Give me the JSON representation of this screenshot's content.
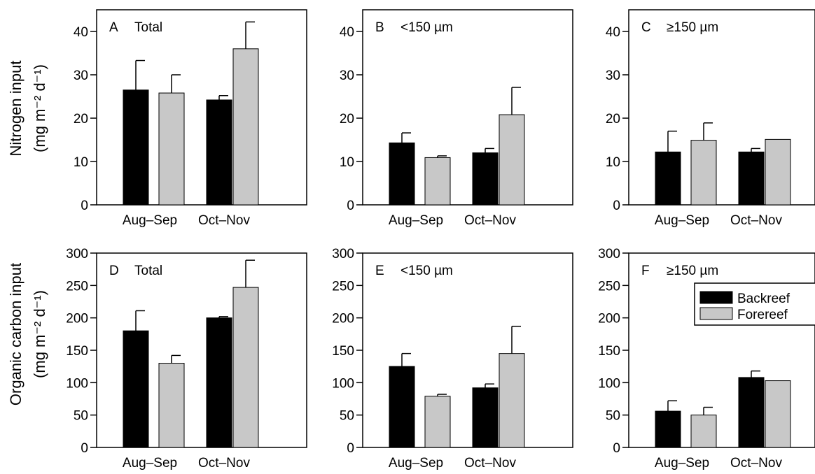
{
  "colors": {
    "Backreef": "#000000",
    "Forereef": "#c8c8c8"
  },
  "legend": {
    "entries": [
      "Backreef",
      "Forereef"
    ],
    "placement": "top-right of panel F"
  },
  "ylabels": {
    "nitrogen_line1": "Nitrogen input",
    "nitrogen_line2": "(mg m⁻² d⁻¹)",
    "carbon_line1": "Organic carbon input",
    "carbon_line2": "(mg m⁻² d⁻¹)"
  },
  "chart_data": [
    {
      "type": "bar",
      "id": "A",
      "letter": "A",
      "title": "Total",
      "categories": [
        "Aug–Sep",
        "Oct–Nov"
      ],
      "ylim": [
        0,
        45
      ],
      "yticks": [
        0,
        10,
        20,
        30,
        40
      ],
      "series": [
        {
          "name": "Backreef",
          "values": [
            26.5,
            24.2
          ],
          "errors": [
            6.8,
            1.0
          ]
        },
        {
          "name": "Forereef",
          "values": [
            25.8,
            36.0
          ],
          "errors": [
            4.2,
            6.2
          ]
        }
      ]
    },
    {
      "type": "bar",
      "id": "B",
      "letter": "B",
      "title": "<150 µm",
      "categories": [
        "Aug–Sep",
        "Oct–Nov"
      ],
      "ylim": [
        0,
        45
      ],
      "yticks": [
        0,
        10,
        20,
        30,
        40
      ],
      "series": [
        {
          "name": "Backreef",
          "values": [
            14.3,
            12.0
          ],
          "errors": [
            2.3,
            1.0
          ]
        },
        {
          "name": "Forereef",
          "values": [
            10.9,
            20.8
          ],
          "errors": [
            0.4,
            6.3
          ]
        }
      ]
    },
    {
      "type": "bar",
      "id": "C",
      "letter": "C",
      "title": "≥150 µm",
      "categories": [
        "Aug–Sep",
        "Oct–Nov"
      ],
      "ylim": [
        0,
        45
      ],
      "yticks": [
        0,
        10,
        20,
        30,
        40
      ],
      "series": [
        {
          "name": "Backreef",
          "values": [
            12.2,
            12.2
          ],
          "errors": [
            4.8,
            0.8
          ]
        },
        {
          "name": "Forereef",
          "values": [
            14.9,
            15.1
          ],
          "errors": [
            4.0,
            0
          ]
        }
      ]
    },
    {
      "type": "bar",
      "id": "D",
      "letter": "D",
      "title": "Total",
      "categories": [
        "Aug–Sep",
        "Oct–Nov"
      ],
      "ylim": [
        0,
        300
      ],
      "yticks": [
        0,
        50,
        100,
        150,
        200,
        250,
        300
      ],
      "series": [
        {
          "name": "Backreef",
          "values": [
            180,
            200
          ],
          "errors": [
            31,
            2
          ]
        },
        {
          "name": "Forereef",
          "values": [
            130,
            247
          ],
          "errors": [
            12,
            42
          ]
        }
      ]
    },
    {
      "type": "bar",
      "id": "E",
      "letter": "E",
      "title": "<150 µm",
      "categories": [
        "Aug–Sep",
        "Oct–Nov"
      ],
      "ylim": [
        0,
        300
      ],
      "yticks": [
        0,
        50,
        100,
        150,
        200,
        250,
        300
      ],
      "series": [
        {
          "name": "Backreef",
          "values": [
            125,
            92
          ],
          "errors": [
            20,
            6
          ]
        },
        {
          "name": "Forereef",
          "values": [
            79,
            145
          ],
          "errors": [
            3,
            42
          ]
        }
      ]
    },
    {
      "type": "bar",
      "id": "F",
      "letter": "F",
      "title": "≥150 µm",
      "categories": [
        "Aug–Sep",
        "Oct–Nov"
      ],
      "ylim": [
        0,
        300
      ],
      "yticks": [
        0,
        50,
        100,
        150,
        200,
        250,
        300
      ],
      "series": [
        {
          "name": "Backreef",
          "values": [
            56,
            108
          ],
          "errors": [
            16,
            10
          ]
        },
        {
          "name": "Forereef",
          "values": [
            50,
            103
          ],
          "errors": [
            12,
            0
          ]
        }
      ]
    }
  ]
}
